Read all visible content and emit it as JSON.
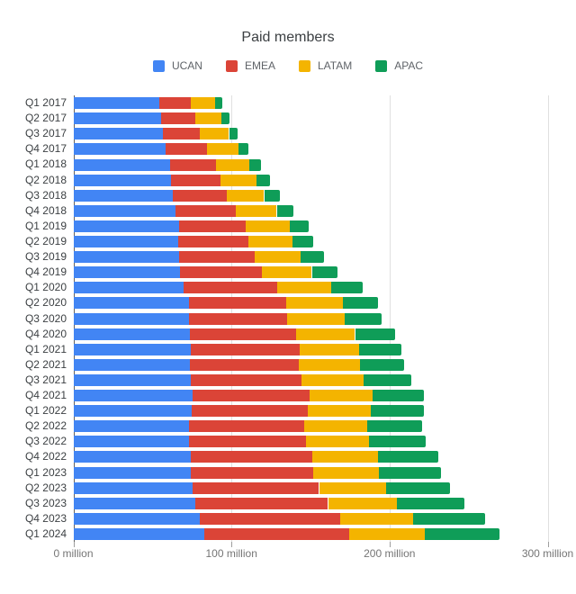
{
  "chart_data": {
    "type": "bar",
    "orientation": "horizontal",
    "stacked": true,
    "title": "Paid members",
    "unit": "million",
    "legend_position": "top",
    "grid": true,
    "categories": [
      "Q1 2017",
      "Q2 2017",
      "Q3 2017",
      "Q4 2017",
      "Q1 2018",
      "Q2 2018",
      "Q3 2018",
      "Q4 2018",
      "Q1 2019",
      "Q2 2019",
      "Q3 2019",
      "Q4 2019",
      "Q1 2020",
      "Q2 2020",
      "Q3 2020",
      "Q4 2020",
      "Q1 2021",
      "Q2 2021",
      "Q3 2021",
      "Q4 2021",
      "Q1 2022",
      "Q2 2022",
      "Q3 2022",
      "Q4 2022",
      "Q1 2023",
      "Q2 2023",
      "Q3 2023",
      "Q4 2023",
      "Q1 2024"
    ],
    "series": [
      {
        "name": "UCAN",
        "color": "#4285f4",
        "values": [
          54.4,
          55.4,
          56.7,
          58.42,
          60.91,
          61.94,
          63.01,
          64.76,
          66.63,
          66.5,
          67.11,
          67.66,
          69.97,
          72.9,
          73.08,
          73.94,
          74.38,
          73.95,
          74.02,
          75.22,
          74.58,
          73.28,
          73.39,
          74.3,
          74.4,
          75.57,
          77.32,
          80.13,
          82.66
        ]
      },
      {
        "name": "EMEA",
        "color": "#db4437",
        "values": [
          20.1,
          21.8,
          23.4,
          26.32,
          29.34,
          31.32,
          33.83,
          37.82,
          42.54,
          44.23,
          47.36,
          51.78,
          58.73,
          61.48,
          62.24,
          66.7,
          68.51,
          68.7,
          70.5,
          74.04,
          73.73,
          72.97,
          73.53,
          76.73,
          77.37,
          79.81,
          83.76,
          88.81,
          91.73
        ]
      },
      {
        "name": "LATAM",
        "color": "#f4b400",
        "values": [
          14.9,
          16.6,
          18.4,
          19.72,
          21.26,
          22.49,
          23.85,
          26.08,
          27.55,
          27.89,
          29.38,
          31.42,
          34.32,
          36.07,
          36.32,
          37.54,
          37.89,
          38.66,
          38.99,
          39.96,
          39.61,
          39.62,
          39.94,
          41.7,
          41.25,
          42.47,
          43.65,
          46.0,
          47.72
        ]
      },
      {
        "name": "APAC",
        "color": "#0f9d58",
        "values": [
          5.0,
          5.2,
          5.5,
          6.18,
          7.39,
          8.6,
          9.73,
          10.6,
          12.14,
          12.94,
          14.49,
          16.23,
          19.84,
          22.49,
          23.5,
          25.49,
          26.85,
          27.88,
          30.05,
          32.63,
          33.72,
          34.8,
          36.23,
          38.02,
          39.48,
          40.55,
          42.43,
          45.34,
          47.5
        ]
      }
    ],
    "x_axis": {
      "ticks": [
        0,
        100,
        200,
        300
      ],
      "tick_labels": [
        "0 million",
        "100 million",
        "200 million",
        "300 million"
      ],
      "min": 0,
      "max": 300
    }
  }
}
